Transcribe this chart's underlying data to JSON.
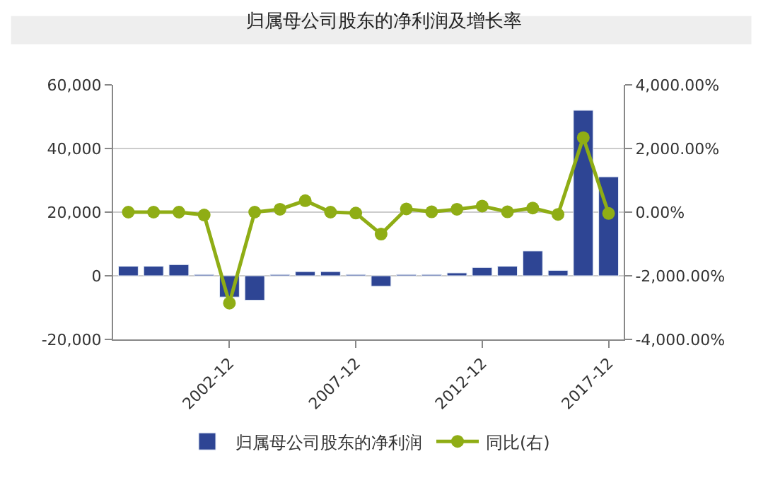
{
  "chart_data": {
    "type": "bar",
    "title": "归属母公司股东的净利润及增长率",
    "categories": [
      null,
      null,
      null,
      null,
      "2002-12",
      null,
      null,
      null,
      null,
      "2007-12",
      null,
      null,
      null,
      null,
      "2012-12",
      null,
      null,
      null,
      null,
      "2017-12"
    ],
    "series": [
      {
        "name": "归属母公司股东的净利润",
        "color": "#2e4594",
        "values": [
          3000,
          3000,
          3500,
          400,
          -6700,
          -7700,
          400,
          1300,
          1300,
          400,
          -3300,
          400,
          400,
          900,
          2600,
          3000,
          7800,
          1700,
          52000,
          31100
        ]
      },
      {
        "name": "同比(右)",
        "type": "line",
        "axis": "y2",
        "color": "#8fad15",
        "marker": "circle",
        "values": [
          0,
          0,
          0,
          -90,
          -2860,
          0,
          90,
          360,
          0,
          -30,
          -690,
          100,
          10,
          90,
          190,
          10,
          130,
          -70,
          2340,
          -40
        ]
      }
    ],
    "ylim": [
      -20000,
      60000
    ],
    "yticks": [
      {
        "value": -20000,
        "label": "-20,000"
      },
      0,
      {
        "value": 20000,
        "label": "20,000"
      },
      {
        "value": 40000,
        "label": "40,000"
      },
      {
        "value": 60000,
        "label": "60,000"
      }
    ],
    "y2lim": [
      -4000,
      4000
    ],
    "y2ticks": [
      {
        "value": -4000,
        "label": "-4,000.00%"
      },
      {
        "value": -2000,
        "label": "-2,000.00%"
      },
      {
        "value": 0,
        "label": "0.00%"
      },
      {
        "value": 2000,
        "label": "2,000.00%"
      },
      {
        "value": 4000,
        "label": "4,000.00%"
      }
    ],
    "grid": "y",
    "legend": "bottom"
  }
}
